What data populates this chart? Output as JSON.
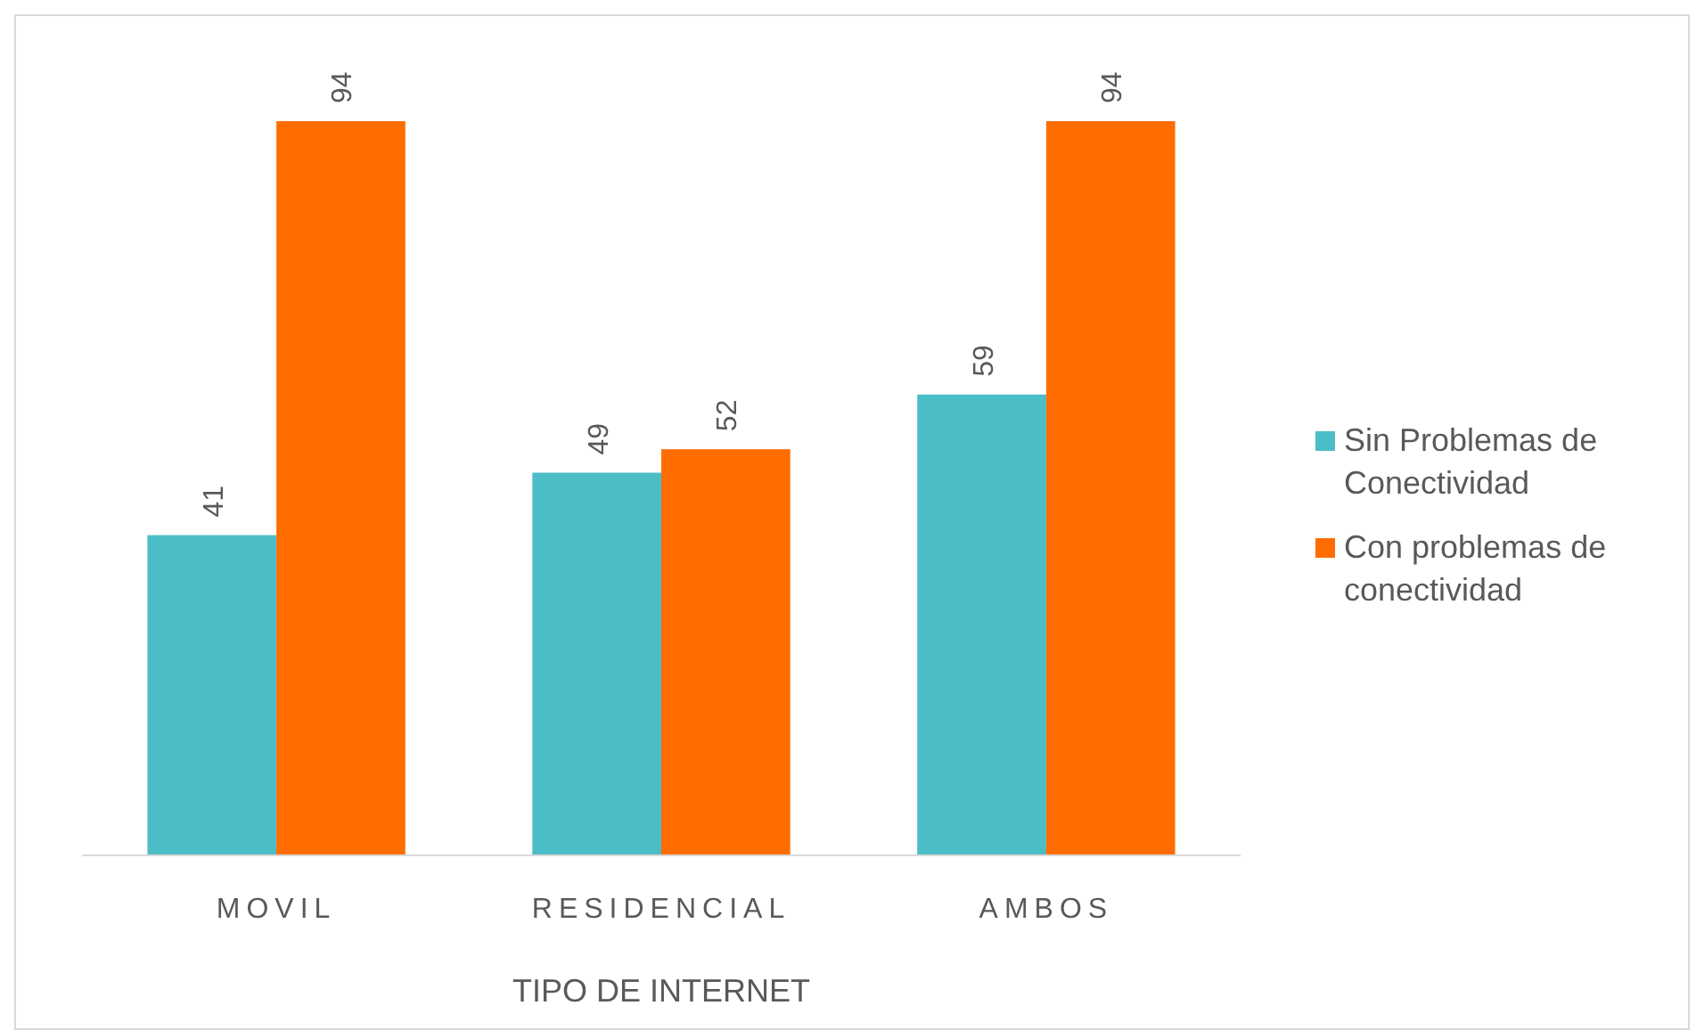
{
  "chart_data": {
    "type": "bar",
    "xlabel": "TIPO DE INTERNET",
    "categories": [
      "MOVIL",
      "RESIDENCIAL",
      "AMBOS"
    ],
    "series": [
      {
        "name": "Sin Problemas de Conectividad",
        "color": "#4bbdc6",
        "values": [
          41,
          49,
          59
        ]
      },
      {
        "name": "Con problemas de conectividad",
        "color": "#ff6d01",
        "values": [
          94,
          52,
          94
        ]
      }
    ],
    "data_labels": true,
    "legend": "right"
  }
}
